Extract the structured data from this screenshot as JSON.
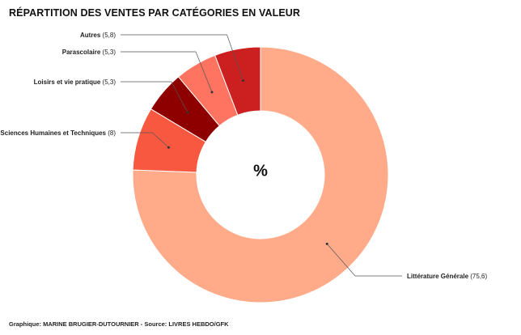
{
  "chart_data": {
    "type": "pie",
    "title": "RÉPARTITION DES VENTES PAR CATÉGORIES EN VALEUR",
    "center_label": "%",
    "categories": [
      "Littérature Générale",
      "Sciences Humaines et Techniques",
      "Loisirs et vie pratique",
      "Parascolaire",
      "Autres"
    ],
    "values": [
      75.6,
      8,
      5.3,
      5.3,
      5.8
    ],
    "value_labels": [
      "(75,6)",
      "(8)",
      "(5,3)",
      "(5,3)",
      "(5,8)"
    ],
    "colors": [
      "#ffab8a",
      "#f95840",
      "#8e0000",
      "#ff7461",
      "#cc1f1f"
    ],
    "legend": "none"
  },
  "credit": "Graphique: MARINE BRUGIER-DUTOURNIER - Source: LIVRES HEBDO/GFK"
}
